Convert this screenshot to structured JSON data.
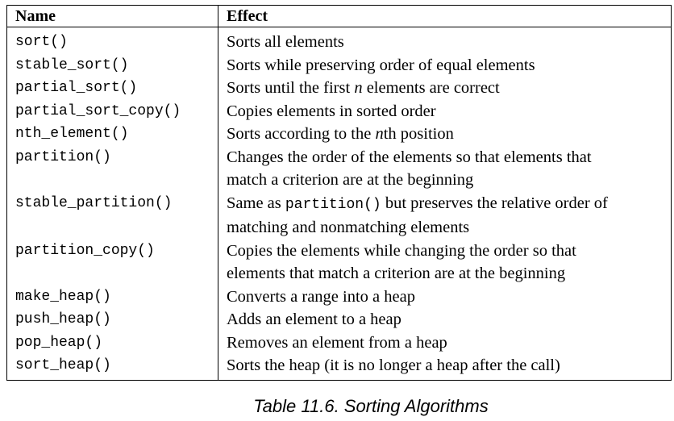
{
  "table": {
    "headers": {
      "name": "Name",
      "effect": "Effect"
    },
    "rows": [
      {
        "name": "sort()",
        "effect": [
          "Sorts all elements"
        ]
      },
      {
        "name": "stable_sort()",
        "effect": [
          "Sorts while preserving order of equal elements"
        ]
      },
      {
        "name": "partial_sort()",
        "effect_pre": "Sorts until the first ",
        "effect_var": "n",
        "effect_post": " elements are correct"
      },
      {
        "name": "partial_sort_copy()",
        "effect": [
          "Copies elements in sorted order"
        ]
      },
      {
        "name": "nth_element()",
        "effect_pre": "Sorts according to the ",
        "effect_var": "n",
        "effect_post": "th position"
      },
      {
        "name": "partition()",
        "effect": [
          "Changes the order of the elements so that elements that",
          "match a criterion are at the beginning"
        ]
      },
      {
        "name": "stable_partition()",
        "effect_pre": "Same as ",
        "effect_code": "partition()",
        "effect_post": " but preserves the relative order of",
        "effect_line2": "matching and nonmatching elements"
      },
      {
        "name": "partition_copy()",
        "effect": [
          "Copies the elements while changing the order so that",
          "elements that match a criterion are at the beginning"
        ]
      },
      {
        "name": "make_heap()",
        "effect": [
          "Converts a range into a heap"
        ]
      },
      {
        "name": "push_heap()",
        "effect": [
          "Adds an element to a heap"
        ]
      },
      {
        "name": "pop_heap()",
        "effect": [
          "Removes an element from a heap"
        ]
      },
      {
        "name": "sort_heap()",
        "effect": [
          "Sorts the heap (it is no longer a heap after the call)"
        ]
      }
    ]
  },
  "caption": "Table 11.6. Sorting Algorithms"
}
